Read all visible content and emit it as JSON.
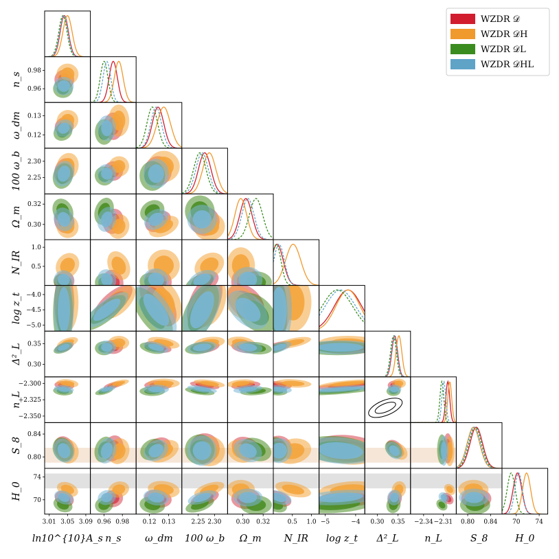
{
  "chart_data": {
    "type": "corner",
    "parameters": [
      {
        "key": "As",
        "label": "ln10^{10}A_s",
        "ticks": [
          "3.01",
          "3.05",
          "3.09"
        ],
        "range": [
          3.0,
          3.1
        ]
      },
      {
        "key": "ns",
        "label": "n_s",
        "ticks": [
          "0.96",
          "0.98"
        ],
        "range": [
          0.945,
          0.995
        ]
      },
      {
        "key": "wdm",
        "label": "ω_dm",
        "ticks": [
          "0.12",
          "0.13"
        ],
        "range": [
          0.113,
          0.137
        ]
      },
      {
        "key": "wb",
        "label": "100 ω_b",
        "ticks": [
          "2.25",
          "2.30"
        ],
        "range": [
          2.2,
          2.34
        ]
      },
      {
        "key": "Om",
        "label": "Ω_m",
        "ticks": [
          "0.30",
          "0.32"
        ],
        "range": [
          0.285,
          0.33
        ]
      },
      {
        "key": "NIR",
        "label": "N_IR",
        "ticks": [
          "0.5",
          "1.0"
        ],
        "range": [
          0.0,
          1.2
        ]
      },
      {
        "key": "logzt",
        "label": "log z_t",
        "ticks": [
          "−5",
          "−4"
        ],
        "range": [
          -5.2,
          -3.7
        ]
      },
      {
        "key": "DL2",
        "label": "Δ²_L",
        "ticks": [
          "0.30",
          "0.35"
        ],
        "range": [
          0.27,
          0.38
        ]
      },
      {
        "key": "nL",
        "label": "n_L",
        "ticks": [
          "−2.34",
          "−2.31"
        ],
        "range": [
          -2.36,
          -2.29
        ]
      },
      {
        "key": "S8",
        "label": "S_8",
        "ticks": [
          "0.80",
          "0.84"
        ],
        "range": [
          0.78,
          0.86
        ]
      },
      {
        "key": "H0",
        "label": "H_0",
        "ticks": [
          "70",
          "74"
        ],
        "range": [
          67.5,
          75.5
        ]
      }
    ],
    "row_ticks": [
      null,
      [
        "0.98",
        "0.96"
      ],
      [
        "0.13",
        "0.12"
      ],
      [
        "2.30",
        "2.25"
      ],
      [
        "0.32",
        "0.30"
      ],
      [
        "1.0",
        "0.5"
      ],
      [
        "−4.0",
        "−4.5",
        "−5.0"
      ],
      [
        "0.35",
        "0.30"
      ],
      [
        "−2.300",
        "−2.325",
        "−2.350"
      ],
      [
        "0.84",
        "0.80"
      ],
      [
        "74",
        "70"
      ]
    ],
    "series": [
      {
        "name": "WZDR 𝒟",
        "color": "#d11d2e",
        "fill": "#d7414e",
        "means": [
          3.043,
          0.97,
          0.1245,
          2.27,
          0.303,
          0.1,
          -4.25,
          0.342,
          -2.303,
          0.815,
          70.2
        ],
        "sigmas": [
          0.009,
          0.0045,
          0.003,
          0.019,
          0.006,
          0.16,
          0.45,
          0.007,
          0.003,
          0.011,
          0.75
        ]
      },
      {
        "name": "WZDR 𝒟H",
        "color": "#f0992d",
        "fill": "#f4a53c",
        "means": [
          3.05,
          0.976,
          0.1275,
          2.284,
          0.298,
          0.52,
          -4.25,
          0.352,
          -2.3,
          0.81,
          71.8
        ],
        "sigmas": [
          0.01,
          0.0048,
          0.0035,
          0.02,
          0.0058,
          0.2,
          0.4,
          0.007,
          0.003,
          0.011,
          0.7
        ]
      },
      {
        "name": "WZDR 𝒟L",
        "color": "#3b8c1f",
        "fill": "#4b8e26",
        "means": [
          3.04,
          0.96,
          0.1215,
          2.255,
          0.313,
          0.08,
          -4.6,
          0.339,
          -2.312,
          0.813,
          69.1
        ],
        "sigmas": [
          0.009,
          0.0042,
          0.0028,
          0.019,
          0.0065,
          0.12,
          0.5,
          0.007,
          0.003,
          0.011,
          0.7
        ]
      },
      {
        "name": "WZDR 𝒟HL",
        "color": "#5fa3c7",
        "fill": "#7ab6d3",
        "means": [
          3.042,
          0.963,
          0.1235,
          2.262,
          0.305,
          0.15,
          -4.5,
          0.341,
          -2.309,
          0.811,
          70.4
        ],
        "sigmas": [
          0.009,
          0.0042,
          0.0028,
          0.019,
          0.006,
          0.14,
          0.5,
          0.007,
          0.003,
          0.011,
          0.65
        ]
      }
    ],
    "bands": [
      {
        "param": "S8",
        "range": [
          0.79,
          0.816
        ],
        "color": "#e8c8a6"
      },
      {
        "param": "H0",
        "range": [
          72.0,
          74.6
        ],
        "color": "#bdbdbd"
      }
    ],
    "reference_ellipse_panel": [
      8,
      7
    ]
  },
  "legend": {
    "items": [
      {
        "name": "WZDR",
        "sym": "𝒟",
        "color": "#d11d2e"
      },
      {
        "name": "WZDR",
        "sym": "𝒟H",
        "color": "#f0992d"
      },
      {
        "name": "WZDR",
        "sym": "𝒟L",
        "color": "#3b8c1f"
      },
      {
        "name": "WZDR",
        "sym": "𝒟HL",
        "color": "#5fa3c7"
      }
    ]
  }
}
